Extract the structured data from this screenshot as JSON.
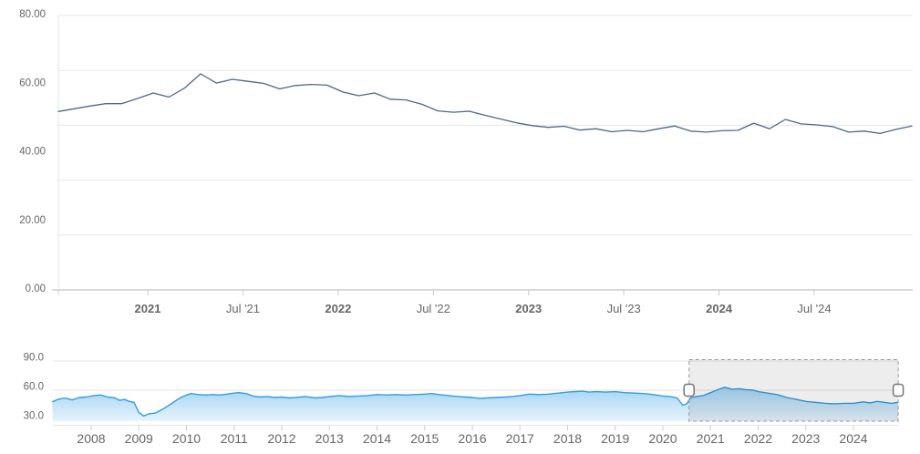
{
  "widget": {
    "description": "stock price chart with range navigator",
    "main_series_name": "price",
    "navigator_series_name": "price-history"
  },
  "style": {
    "main_line": "#4c678f",
    "nav_line": "#2f9de4",
    "nav_fill_top": "#92cbf1",
    "nav_fill_bottom": "#e6f3fc",
    "grid": "#e6e6e6",
    "axis": "#d9d9d9",
    "tick": "#cccccc",
    "label": "#666666",
    "selection_fill": "rgba(0,0,0,0.07)",
    "selection_border": "#999999",
    "handle_fill": "#ffffff",
    "handle_border": "#757575"
  },
  "chart_data": [
    {
      "type": "line",
      "title": "",
      "xlabel": "",
      "ylabel": "",
      "x_range": [
        "2020-07",
        "2025-01"
      ],
      "x_interval": "monthly",
      "ylim": [
        0,
        80
      ],
      "grid": true,
      "yticks": [
        "80.00",
        "60.00",
        "40.00",
        "20.00",
        "0.00"
      ],
      "xticks": [
        {
          "label": "2021",
          "bold": true
        },
        {
          "label": "Jul '21",
          "bold": false
        },
        {
          "label": "2022",
          "bold": true
        },
        {
          "label": "Jul '22",
          "bold": false
        },
        {
          "label": "2023",
          "bold": true
        },
        {
          "label": "Jul '23",
          "bold": false
        },
        {
          "label": "2024",
          "bold": true
        },
        {
          "label": "Jul '24",
          "bold": false
        }
      ],
      "values": [
        52.0,
        52.8,
        53.6,
        54.3,
        54.3,
        55.8,
        57.4,
        56.2,
        58.9,
        63.0,
        60.3,
        61.4,
        60.8,
        60.2,
        58.6,
        59.6,
        59.9,
        59.7,
        57.7,
        56.6,
        57.4,
        55.6,
        55.4,
        54.1,
        52.2,
        51.8,
        52.1,
        50.9,
        49.8,
        48.7,
        47.9,
        47.4,
        47.7,
        46.6,
        47.0,
        46.1,
        46.5,
        46.1,
        47.0,
        47.8,
        46.3,
        46.0,
        46.4,
        46.5,
        48.6,
        47.0,
        49.7,
        48.4,
        48.1,
        47.6,
        46.0,
        46.3,
        45.6,
        46.8,
        47.8
      ]
    },
    {
      "type": "area",
      "role": "navigator",
      "title": "",
      "ylim": [
        30,
        90
      ],
      "yticks": [
        "90.0",
        "60.0",
        "30.0"
      ],
      "xticks": [
        "2008",
        "2009",
        "2010",
        "2011",
        "2012",
        "2013",
        "2014",
        "2015",
        "2016",
        "2017",
        "2018",
        "2019",
        "2020",
        "2021",
        "2022",
        "2023",
        "2024"
      ],
      "selection": {
        "start_year": 2020.55,
        "end_year": 2024.94
      },
      "points": [
        [
          2007.18,
          48.0
        ],
        [
          2007.3,
          50.5
        ],
        [
          2007.45,
          52.0
        ],
        [
          2007.6,
          50.0
        ],
        [
          2007.75,
          52.5
        ],
        [
          2007.9,
          53.0
        ],
        [
          2008.05,
          54.5
        ],
        [
          2008.2,
          55.0
        ],
        [
          2008.35,
          53.0
        ],
        [
          2008.5,
          52.0
        ],
        [
          2008.6,
          49.5
        ],
        [
          2008.7,
          50.5
        ],
        [
          2008.8,
          48.5
        ],
        [
          2008.9,
          47.5
        ],
        [
          2009.0,
          37.0
        ],
        [
          2009.1,
          33.5
        ],
        [
          2009.2,
          35.5
        ],
        [
          2009.35,
          36.5
        ],
        [
          2009.5,
          40.5
        ],
        [
          2009.65,
          45.0
        ],
        [
          2009.8,
          50.0
        ],
        [
          2009.9,
          53.0
        ],
        [
          2010.0,
          55.0
        ],
        [
          2010.1,
          56.5
        ],
        [
          2010.25,
          55.5
        ],
        [
          2010.4,
          55.0
        ],
        [
          2010.55,
          55.5
        ],
        [
          2010.7,
          55.0
        ],
        [
          2010.85,
          56.0
        ],
        [
          2011.0,
          57.0
        ],
        [
          2011.1,
          57.5
        ],
        [
          2011.25,
          56.5
        ],
        [
          2011.4,
          54.0
        ],
        [
          2011.55,
          53.0
        ],
        [
          2011.7,
          53.5
        ],
        [
          2011.85,
          52.5
        ],
        [
          2012.0,
          53.0
        ],
        [
          2012.15,
          52.0
        ],
        [
          2012.3,
          52.5
        ],
        [
          2012.5,
          53.5
        ],
        [
          2012.7,
          52.0
        ],
        [
          2012.85,
          52.5
        ],
        [
          2013.0,
          53.5
        ],
        [
          2013.2,
          54.5
        ],
        [
          2013.4,
          53.5
        ],
        [
          2013.6,
          54.0
        ],
        [
          2013.8,
          54.5
        ],
        [
          2014.0,
          55.5
        ],
        [
          2014.2,
          55.0
        ],
        [
          2014.4,
          55.5
        ],
        [
          2014.6,
          55.0
        ],
        [
          2014.8,
          55.5
        ],
        [
          2015.0,
          56.0
        ],
        [
          2015.15,
          56.5
        ],
        [
          2015.3,
          55.5
        ],
        [
          2015.5,
          54.5
        ],
        [
          2015.7,
          53.5
        ],
        [
          2015.85,
          53.0
        ],
        [
          2016.0,
          52.5
        ],
        [
          2016.15,
          51.5
        ],
        [
          2016.3,
          52.0
        ],
        [
          2016.5,
          52.5
        ],
        [
          2016.7,
          53.0
        ],
        [
          2016.85,
          53.5
        ],
        [
          2017.0,
          54.5
        ],
        [
          2017.2,
          56.0
        ],
        [
          2017.4,
          55.5
        ],
        [
          2017.6,
          56.0
        ],
        [
          2017.8,
          57.0
        ],
        [
          2018.0,
          58.0
        ],
        [
          2018.15,
          58.5
        ],
        [
          2018.3,
          59.0
        ],
        [
          2018.45,
          58.0
        ],
        [
          2018.6,
          58.5
        ],
        [
          2018.8,
          58.0
        ],
        [
          2019.0,
          58.5
        ],
        [
          2019.2,
          57.5
        ],
        [
          2019.4,
          57.0
        ],
        [
          2019.6,
          56.5
        ],
        [
          2019.8,
          55.5
        ],
        [
          2020.0,
          54.0
        ],
        [
          2020.15,
          53.5
        ],
        [
          2020.3,
          52.0
        ],
        [
          2020.42,
          44.5
        ],
        [
          2020.5,
          46.0
        ],
        [
          2020.58,
          52.0
        ],
        [
          2020.7,
          53.5
        ],
        [
          2020.85,
          54.5
        ],
        [
          2021.0,
          57.5
        ],
        [
          2021.15,
          60.5
        ],
        [
          2021.3,
          63.0
        ],
        [
          2021.45,
          61.0
        ],
        [
          2021.6,
          61.5
        ],
        [
          2021.75,
          60.5
        ],
        [
          2021.9,
          60.0
        ],
        [
          2022.0,
          58.5
        ],
        [
          2022.2,
          57.0
        ],
        [
          2022.4,
          55.5
        ],
        [
          2022.6,
          52.5
        ],
        [
          2022.8,
          50.5
        ],
        [
          2023.0,
          48.5
        ],
        [
          2023.2,
          47.5
        ],
        [
          2023.4,
          46.5
        ],
        [
          2023.6,
          46.0
        ],
        [
          2023.8,
          46.5
        ],
        [
          2024.0,
          46.5
        ],
        [
          2024.2,
          48.0
        ],
        [
          2024.35,
          47.0
        ],
        [
          2024.5,
          48.5
        ],
        [
          2024.65,
          47.5
        ],
        [
          2024.8,
          46.5
        ],
        [
          2024.94,
          47.5
        ]
      ]
    }
  ]
}
